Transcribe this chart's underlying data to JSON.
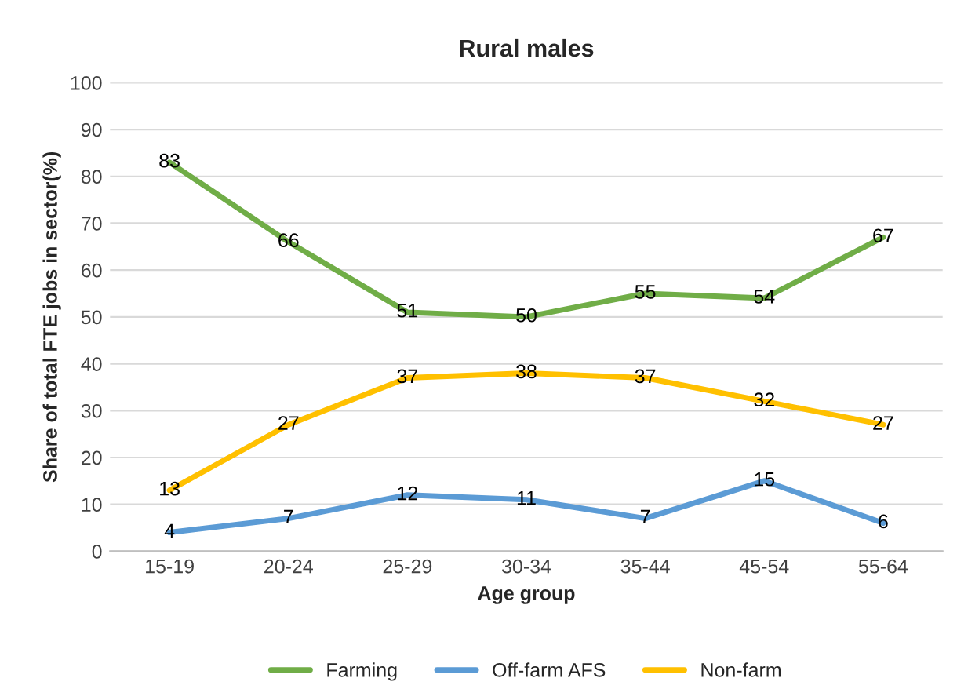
{
  "chart_data": {
    "type": "line",
    "title": "Rural males",
    "xlabel": "Age group",
    "ylabel": "Share of total FTE jobs in sector(%)",
    "categories": [
      "15-19",
      "20-24",
      "25-29",
      "30-34",
      "35-44",
      "45-54",
      "55-64"
    ],
    "series": [
      {
        "name": "Farming",
        "color": "#70ad47",
        "values": [
          83,
          66,
          51,
          50,
          55,
          54,
          67
        ]
      },
      {
        "name": "Off-farm AFS",
        "color": "#5b9bd5",
        "values": [
          4,
          7,
          12,
          11,
          7,
          15,
          6
        ]
      },
      {
        "name": "Non-farm",
        "color": "#ffc000",
        "values": [
          13,
          27,
          37,
          38,
          37,
          32,
          27
        ]
      }
    ],
    "ylim": [
      0,
      100
    ],
    "yticks": [
      0,
      10,
      20,
      30,
      40,
      50,
      60,
      70,
      80,
      90,
      100
    ],
    "grid": "y",
    "legend": "bottom",
    "data_labels": true,
    "marker": "none",
    "line_style": "solid"
  }
}
